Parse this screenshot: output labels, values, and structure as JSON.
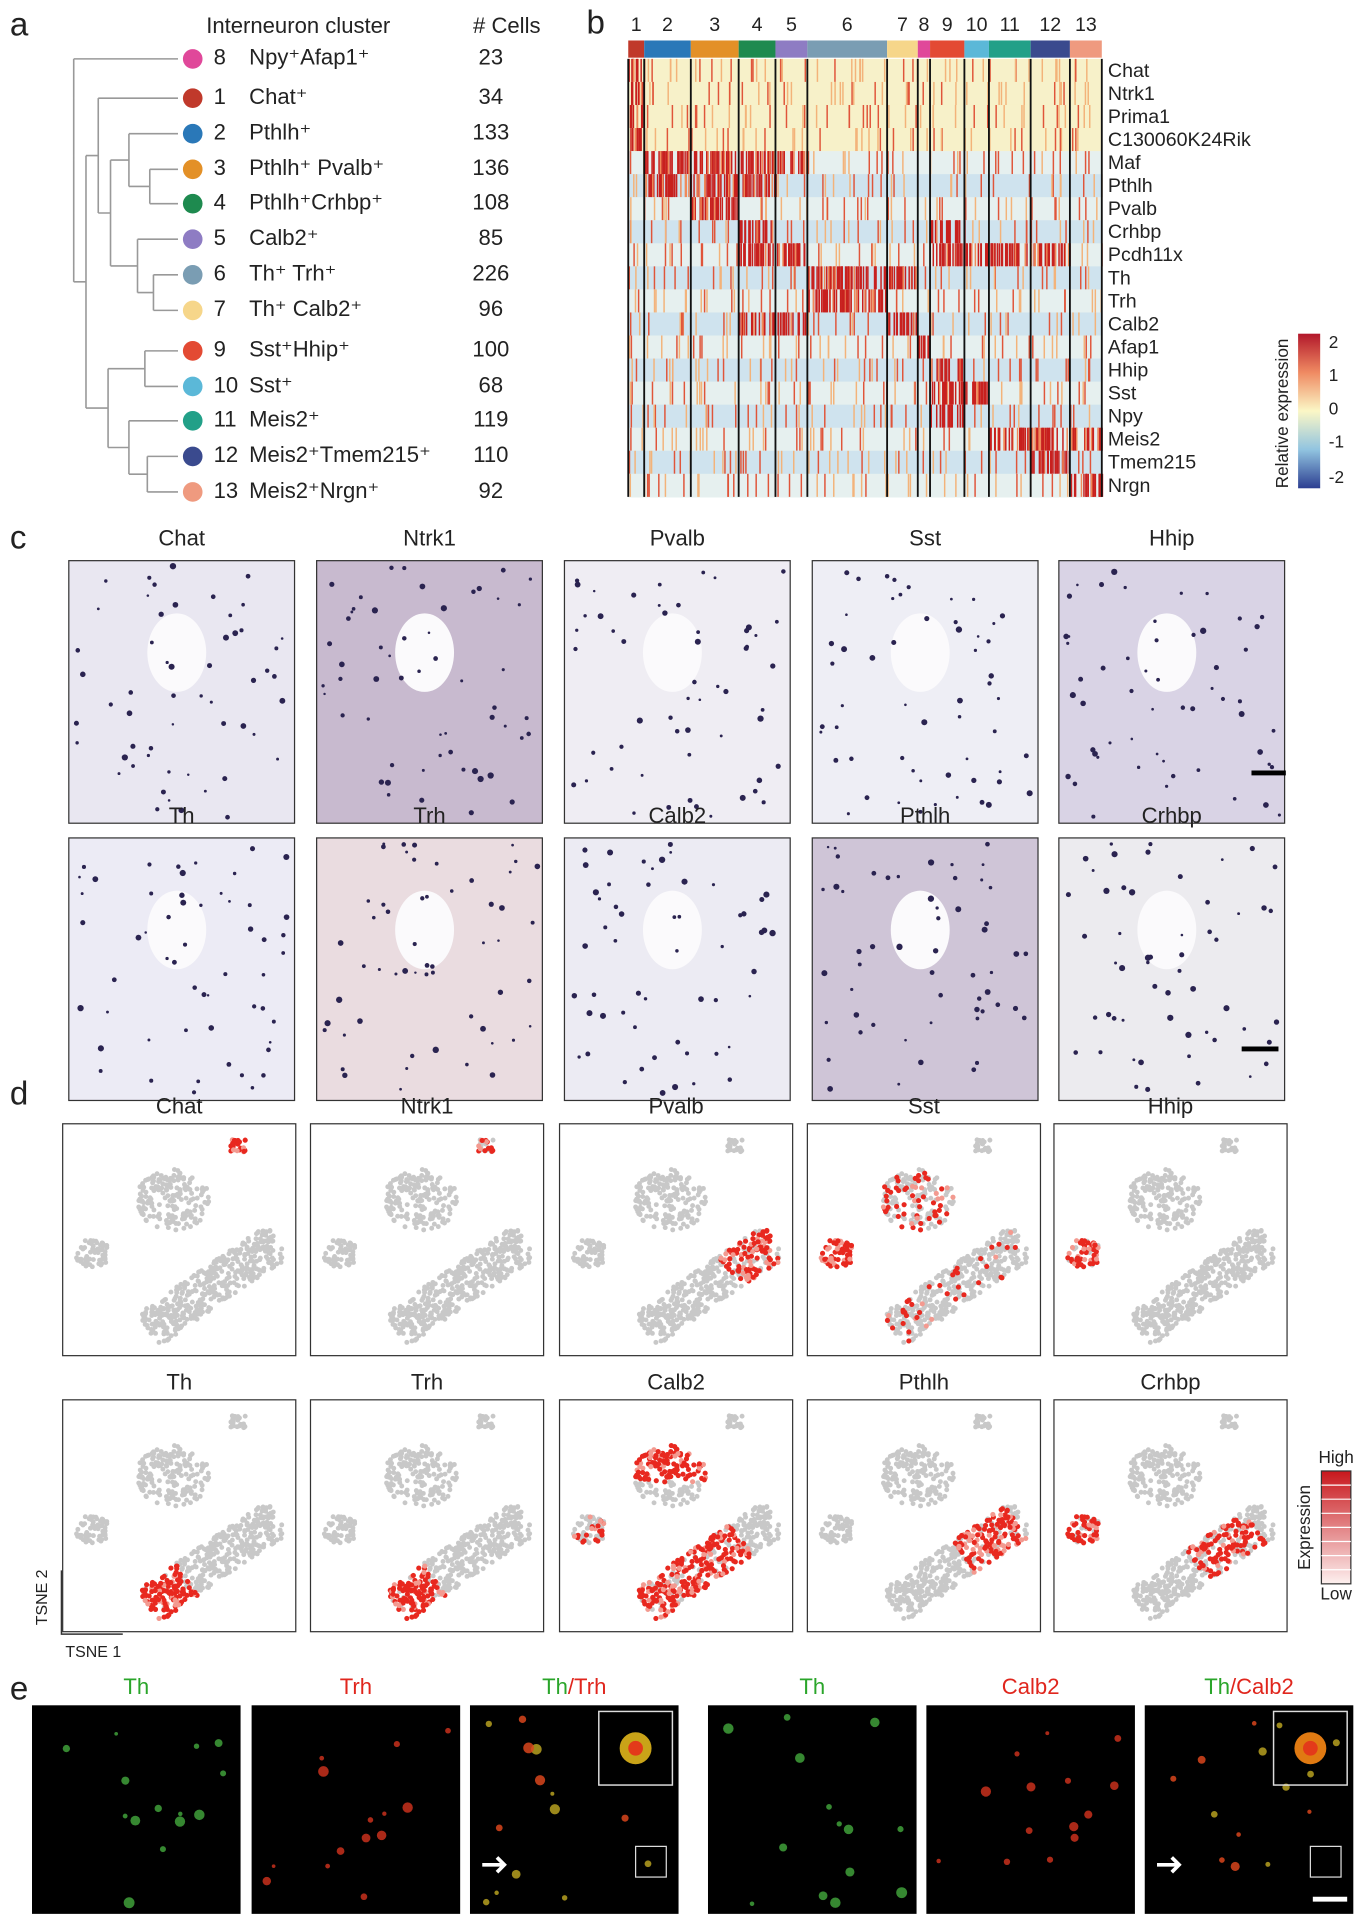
{
  "panel_labels": [
    "a",
    "b",
    "c",
    "d",
    "e"
  ],
  "clusters": {
    "header_name": "Interneuron cluster",
    "header_cells": "# Cells",
    "rows": [
      {
        "id": "8",
        "label": "Npy⁺Afap1⁺",
        "cells": "23",
        "color": "#e0489a"
      },
      {
        "id": "1",
        "label": "Chat⁺",
        "cells": "34",
        "color": "#c0392b"
      },
      {
        "id": "2",
        "label": "Pthlh⁺",
        "cells": "133",
        "color": "#2a78b8"
      },
      {
        "id": "3",
        "label": "Pthlh⁺ Pvalb⁺",
        "cells": "136",
        "color": "#e39027"
      },
      {
        "id": "4",
        "label": "Pthlh⁺Crhbp⁺",
        "cells": "108",
        "color": "#1e8a4f"
      },
      {
        "id": "5",
        "label": "Calb2⁺",
        "cells": "85",
        "color": "#8e7cc3"
      },
      {
        "id": "6",
        "label": "Th⁺ Trh⁺",
        "cells": "226",
        "color": "#7a9db3"
      },
      {
        "id": "7",
        "label": "Th⁺ Calb2⁺",
        "cells": "96",
        "color": "#f6d68a"
      },
      {
        "id": "9",
        "label": "Sst⁺Hhip⁺",
        "cells": "100",
        "color": "#e34a33"
      },
      {
        "id": "10",
        "label": "Sst⁺",
        "cells": "68",
        "color": "#5bb8d8"
      },
      {
        "id": "11",
        "label": "Meis2⁺",
        "cells": "119",
        "color": "#22a088"
      },
      {
        "id": "12",
        "label": "Meis2⁺Tmem215⁺",
        "cells": "110",
        "color": "#3a4a8e"
      },
      {
        "id": "13",
        "label": "Meis2⁺Nrgn⁺",
        "cells": "92",
        "color": "#ef9a7f"
      }
    ]
  },
  "heatmap": {
    "clusters": [
      {
        "id": "1",
        "color": "#c0392b"
      },
      {
        "id": "2",
        "color": "#2a78b8"
      },
      {
        "id": "3",
        "color": "#e39027"
      },
      {
        "id": "4",
        "color": "#1e8a4f"
      },
      {
        "id": "5",
        "color": "#8e7cc3"
      },
      {
        "id": "6",
        "color": "#7a9db3"
      },
      {
        "id": "7",
        "color": "#f6d68a"
      },
      {
        "id": "8",
        "color": "#e0489a"
      },
      {
        "id": "9",
        "color": "#e34a33"
      },
      {
        "id": "10",
        "color": "#5bb8d8"
      },
      {
        "id": "11",
        "color": "#22a088"
      },
      {
        "id": "12",
        "color": "#3a4a8e"
      },
      {
        "id": "13",
        "color": "#ef9a7f"
      }
    ],
    "genes": [
      "Chat",
      "Ntrk1",
      "Prima1",
      "C130060K24Rik",
      "Maf",
      "Pthlh",
      "Pvalb",
      "Crhbp",
      "Pcdh11x",
      "Th",
      "Trh",
      "Calb2",
      "Afap1",
      "Hhip",
      "Sst",
      "Npy",
      "Meis2",
      "Tmem215",
      "Nrgn"
    ],
    "colorbar": {
      "title": "Relative expression",
      "ticks": [
        "2",
        "1",
        "0",
        "-1",
        "-2"
      ]
    }
  },
  "ish": {
    "row1": [
      "Chat",
      "Ntrk1",
      "Pvalb",
      "Sst",
      "Hhip"
    ],
    "row2": [
      "Th",
      "Trh",
      "Calb2",
      "Pthlh",
      "Crhbp"
    ]
  },
  "tsne": {
    "row1": [
      "Chat",
      "Ntrk1",
      "Pvalb",
      "Sst",
      "Hhip"
    ],
    "row2": [
      "Th",
      "Trh",
      "Calb2",
      "Pthlh",
      "Crhbp"
    ],
    "xlabel": "TSNE 1",
    "ylabel": "TSNE 2",
    "legend": {
      "title": "Expression",
      "high": "High",
      "low": "Low"
    }
  },
  "fluor": {
    "panels": [
      {
        "green": "Th"
      },
      {
        "red": "Trh"
      },
      {
        "green": "Th",
        "red": "/Trh"
      },
      {
        "green": "Th"
      },
      {
        "red": "Calb2"
      },
      {
        "green": "Th",
        "red": "/Calb2"
      }
    ]
  }
}
